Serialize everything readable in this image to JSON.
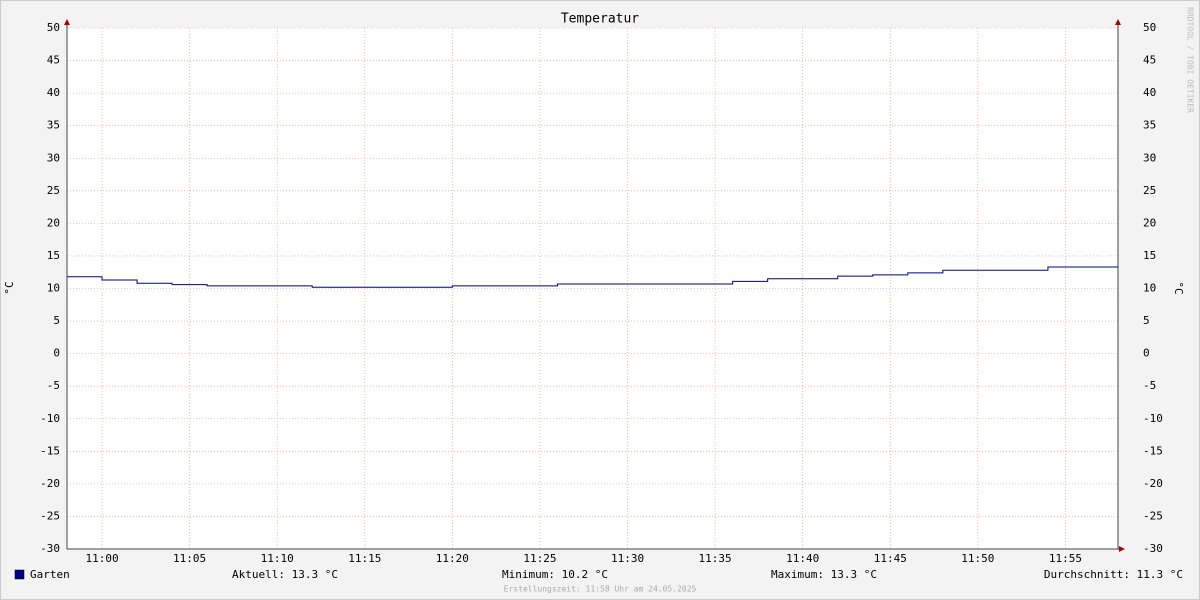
{
  "chart_data": {
    "type": "line",
    "step": "post",
    "title": "Temperatur",
    "y_label": "°C",
    "watermark": "RRDTOOL / TOBI OETIKER",
    "x": [
      "10:58",
      "11:00",
      "11:02",
      "11:04",
      "11:06",
      "11:12",
      "11:20",
      "11:26",
      "11:36",
      "11:38",
      "11:42",
      "11:44",
      "11:46",
      "11:48",
      "11:54",
      "11:58"
    ],
    "series": [
      {
        "name": "Garten",
        "color": "#000080",
        "values": [
          11.8,
          11.3,
          10.8,
          10.6,
          10.4,
          10.2,
          10.4,
          10.7,
          11.1,
          11.5,
          11.9,
          12.1,
          12.4,
          12.8,
          13.3,
          13.3
        ]
      }
    ],
    "xlim": [
      "10:58",
      "11:58"
    ],
    "xticks": [
      "11:00",
      "11:05",
      "11:10",
      "11:15",
      "11:20",
      "11:25",
      "11:30",
      "11:35",
      "11:40",
      "11:45",
      "11:50",
      "11:55"
    ],
    "ylim": [
      -30,
      50
    ],
    "yticks": [
      -30,
      -25,
      -20,
      -15,
      -10,
      -5,
      0,
      5,
      10,
      15,
      20,
      25,
      30,
      35,
      40,
      45,
      50
    ],
    "grid": true,
    "stats": [
      "Aktuell: 13.3 °C",
      "Minimum: 10.2 °C",
      "Maximum: 13.3 °C",
      "Durchschnitt: 11.3 °C"
    ],
    "footer": "Erstellungszeit: 11:58 Uhr am 24.05.2025"
  }
}
